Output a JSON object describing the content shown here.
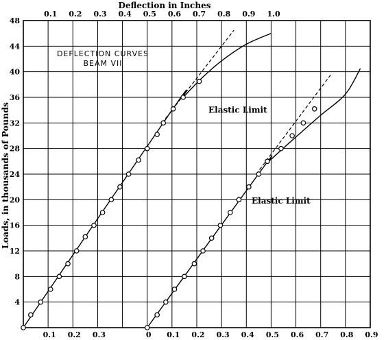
{
  "chart_data": {
    "type": "line",
    "title": "DEFLECTION CURVES",
    "subtitle": "BEAM VII",
    "xlabel_top": "Deflection in Inches",
    "ylabel": "Loads, in thousands of Pounds",
    "grid": true,
    "yticks": [
      "4",
      "8",
      "12",
      "16",
      "20",
      "24",
      "28",
      "32",
      "36",
      "40",
      "44",
      "48"
    ],
    "ylim": [
      0,
      48
    ],
    "top_ticks": [
      "0.1",
      "0.2",
      "0.3",
      "0.4",
      "0.5",
      "0.6",
      "0.7",
      "0.8",
      "0.9",
      "1.0"
    ],
    "bottom_ticks_left": [
      "0.1",
      "0.2",
      "0.3"
    ],
    "bottom_ticks_right": [
      "0",
      "0.1",
      "0.2",
      "0.3",
      "0.4",
      "0.5",
      "0.6",
      "0.7",
      "0.8",
      "0.9"
    ],
    "series": [
      {
        "x_origin": 0,
        "points": [
          [
            0,
            0
          ],
          [
            0.03,
            2
          ],
          [
            0.07,
            4
          ],
          [
            0.11,
            6
          ],
          [
            0.145,
            8
          ],
          [
            0.18,
            10
          ],
          [
            0.215,
            12
          ],
          [
            0.25,
            14.2
          ],
          [
            0.285,
            16
          ],
          [
            0.32,
            18
          ],
          [
            0.355,
            20
          ],
          [
            0.39,
            22
          ],
          [
            0.425,
            24
          ],
          [
            0.465,
            26.2
          ],
          [
            0.5,
            28
          ],
          [
            0.54,
            30.2
          ],
          [
            0.565,
            32
          ],
          [
            0.605,
            34.2
          ],
          [
            0.645,
            36
          ],
          [
            0.71,
            38.5
          ]
        ],
        "curve": [
          [
            0,
            0
          ],
          [
            0.6,
            34
          ],
          [
            0.65,
            36.2
          ],
          [
            0.72,
            39
          ],
          [
            0.8,
            41.7
          ],
          [
            0.9,
            44.3
          ],
          [
            1.0,
            46
          ]
        ],
        "tangent": [
          [
            0.56,
            32
          ],
          [
            0.85,
            46.5
          ]
        ],
        "annotation": "Elastic Limit",
        "annotation_at": [
          36,
          33.8
        ]
      },
      {
        "x_origin": 0.5,
        "points": [
          [
            0,
            0
          ],
          [
            0.04,
            2
          ],
          [
            0.075,
            4
          ],
          [
            0.11,
            6
          ],
          [
            0.15,
            8
          ],
          [
            0.19,
            10
          ],
          [
            0.225,
            12
          ],
          [
            0.26,
            14
          ],
          [
            0.295,
            16
          ],
          [
            0.335,
            18
          ],
          [
            0.37,
            20
          ],
          [
            0.41,
            22
          ],
          [
            0.45,
            24
          ],
          [
            0.485,
            26
          ],
          [
            0.54,
            28
          ],
          [
            0.585,
            30
          ],
          [
            0.63,
            32
          ],
          [
            0.675,
            34.2
          ]
        ],
        "curve": [
          [
            0,
            0
          ],
          [
            0.46,
            24.6
          ],
          [
            0.5,
            26.3
          ],
          [
            0.6,
            29.8
          ],
          [
            0.7,
            33.2
          ],
          [
            0.8,
            36.5
          ],
          [
            0.86,
            40.5
          ]
        ],
        "tangent": [
          [
            0.44,
            24
          ],
          [
            0.74,
            39.5
          ]
        ],
        "annotation": "Elastic Limit",
        "annotation_at": [
          0.39,
          19.8
        ]
      }
    ]
  }
}
